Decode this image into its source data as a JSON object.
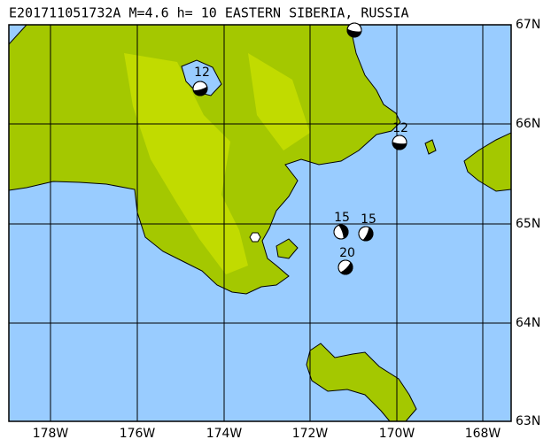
{
  "header": {
    "title": "E201711051732A M=4.6 h= 10 EASTERN SIBERIA, RUSSIA"
  },
  "lat_labels": [
    "67N",
    "66N",
    "65N",
    "64N",
    "63N"
  ],
  "lon_labels": [
    "178W",
    "176W",
    "174W",
    "172W",
    "170W",
    "168W"
  ],
  "events": [
    {
      "depth": "12"
    },
    {
      "depth": "12"
    },
    {
      "depth": "15"
    },
    {
      "depth": "15"
    },
    {
      "depth": "20"
    }
  ]
}
